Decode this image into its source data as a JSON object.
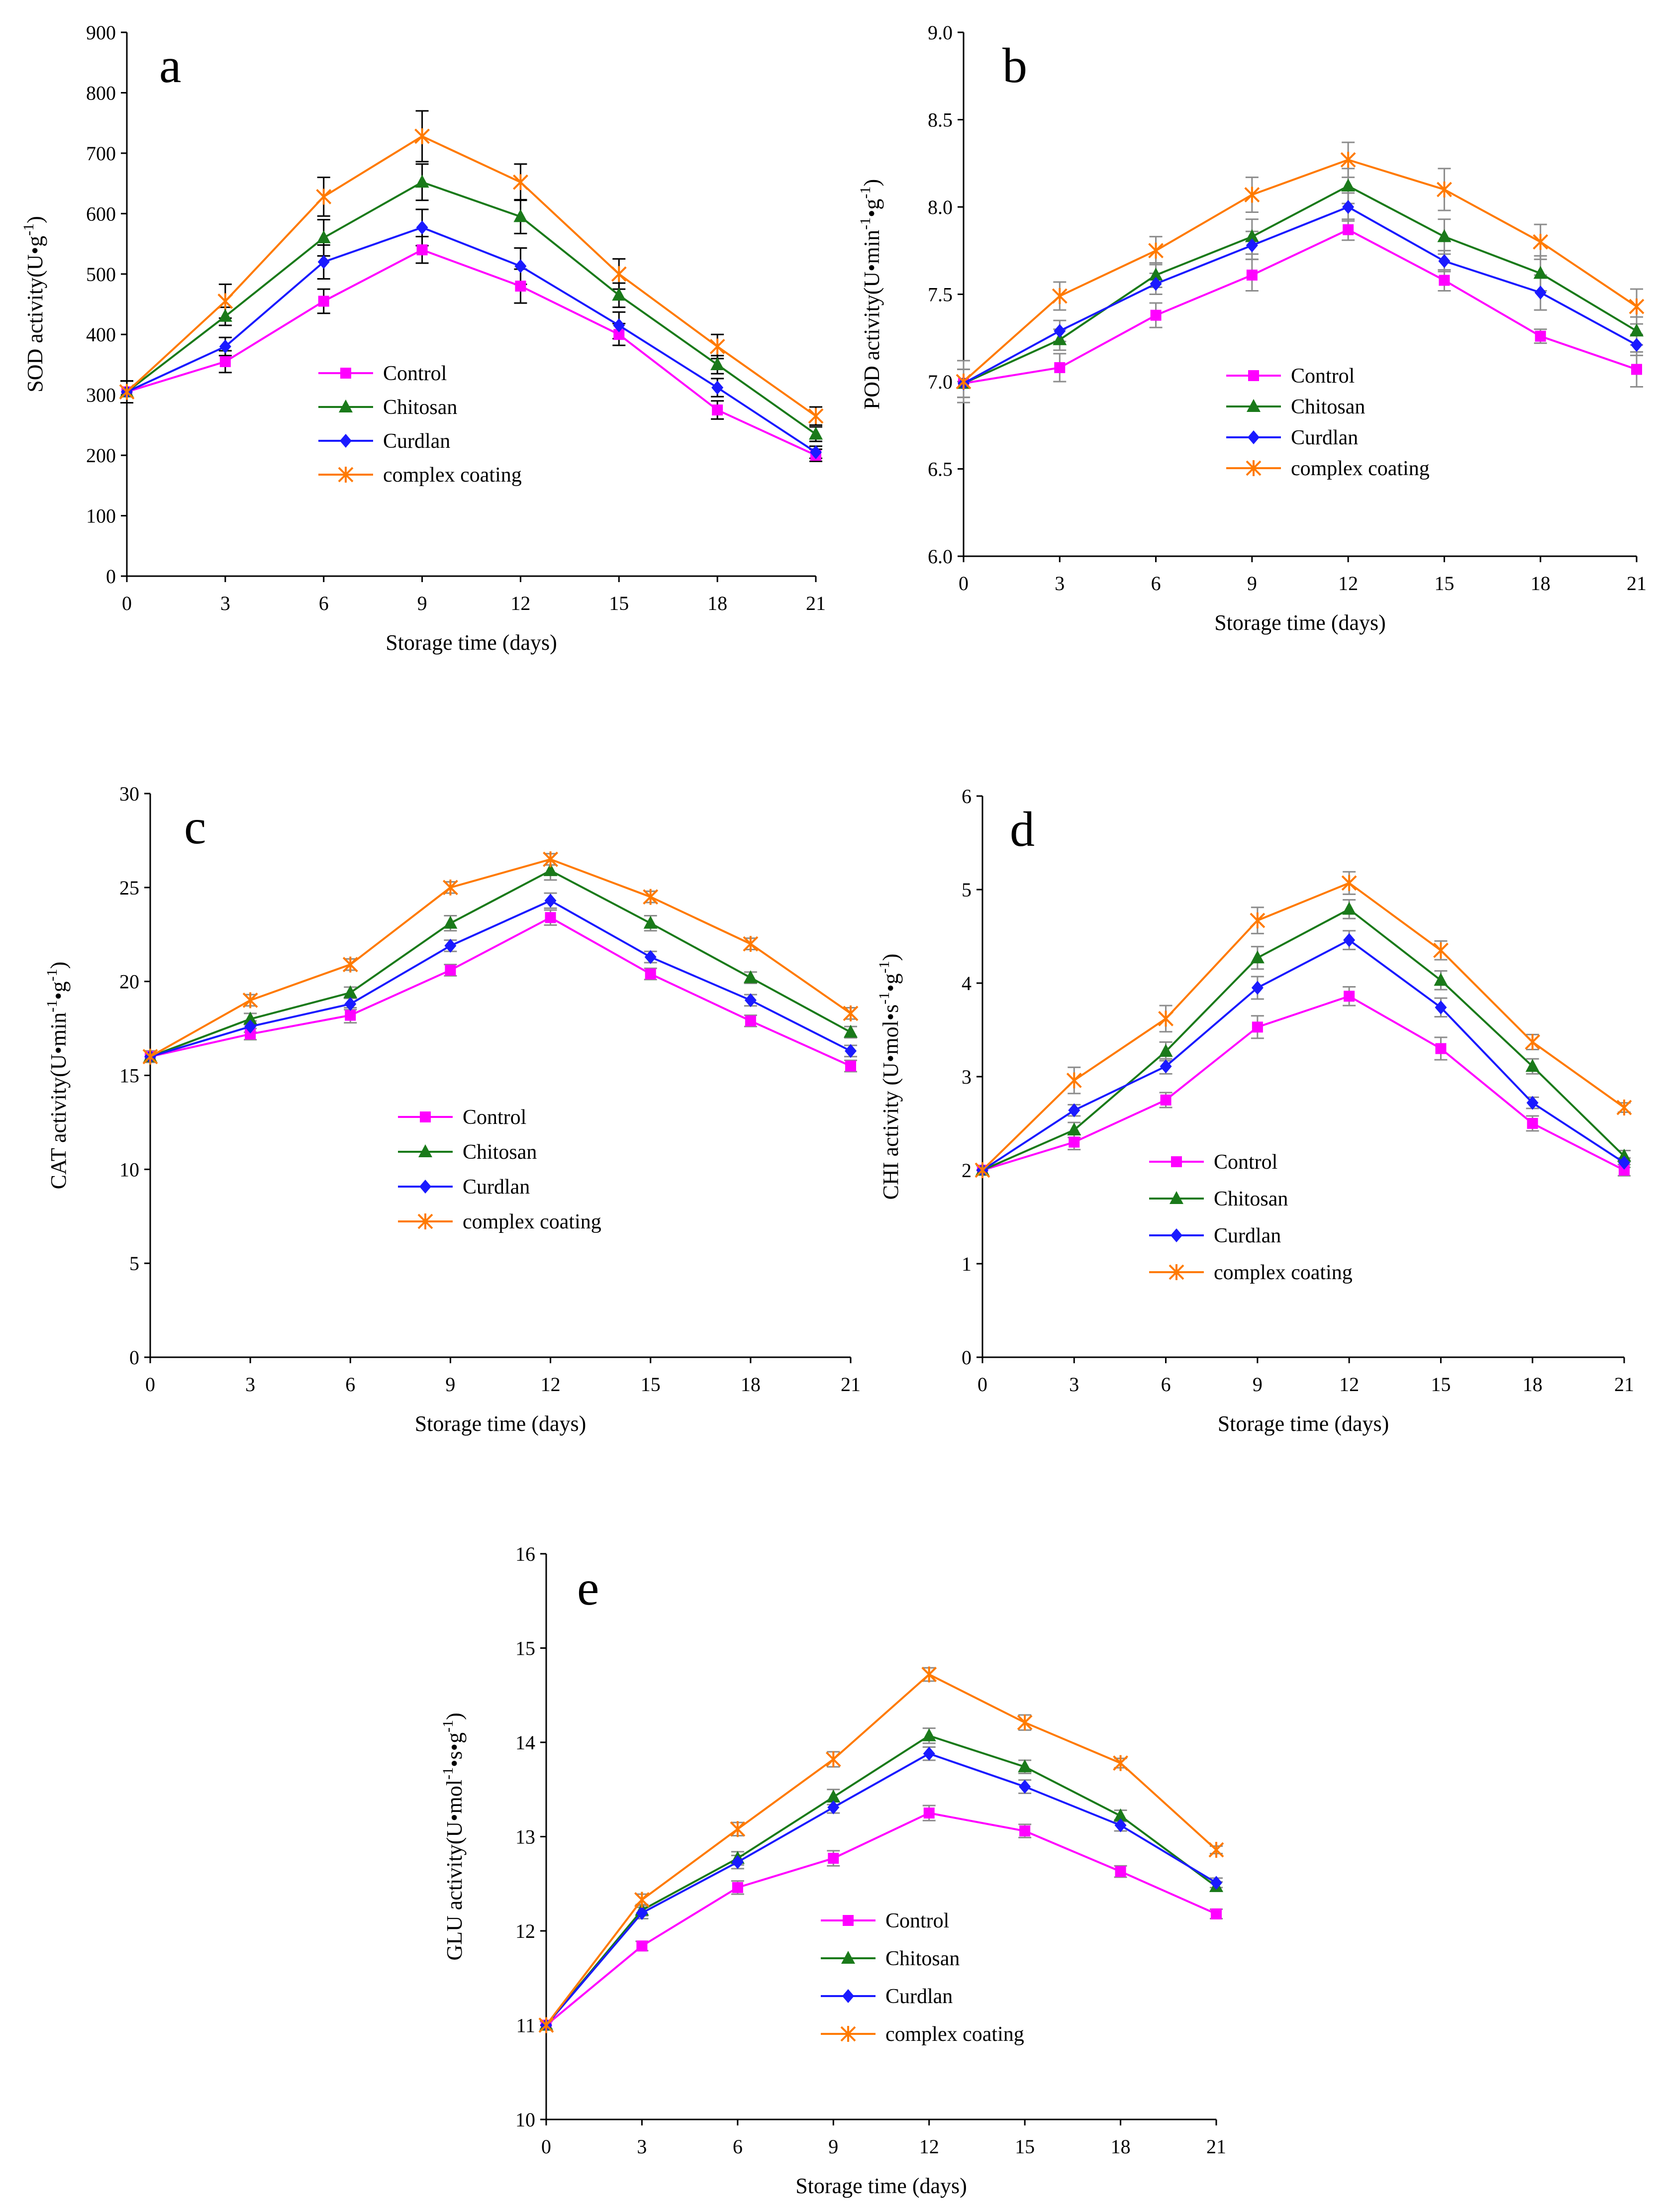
{
  "figure": {
    "colors": {
      "Control": "#ff00ff",
      "Chitosan": "#1a7a1a",
      "Curdlan": "#1a1aff",
      "complex coating": "#ff7a00",
      "error_bar_dark": "#000000",
      "error_bar_light": "#8c8c8c"
    },
    "markers": {
      "Control": "square",
      "Chitosan": "triangle",
      "Curdlan": "diamond",
      "complex coating": "star"
    }
  },
  "chart_data": [
    {
      "type": "line",
      "panel": "a",
      "title": "",
      "xlabel": "Storage time (days)",
      "ylabel": {
        "base": "SOD activity(U•g",
        "sup": "-1",
        "tail": ")"
      },
      "x": [
        0,
        3,
        6,
        9,
        12,
        15,
        18,
        21
      ],
      "xticks": [
        "0",
        "3",
        "6",
        "9",
        "12",
        "15",
        "18",
        "21"
      ],
      "ylim": [
        0,
        900
      ],
      "yticks": [
        "0",
        "100",
        "200",
        "300",
        "400",
        "500",
        "600",
        "700",
        "800",
        "900"
      ],
      "error_bar_style": "dark",
      "legend": [
        "Control",
        "Chitosan",
        "Curdlan",
        "complex coating"
      ],
      "series": [
        {
          "name": "Control",
          "values": [
            305,
            355,
            455,
            540,
            480,
            400,
            275,
            200
          ],
          "errors": [
            18,
            18,
            20,
            22,
            28,
            18,
            15,
            10
          ]
        },
        {
          "name": "Chitosan",
          "values": [
            305,
            430,
            560,
            652,
            595,
            465,
            350,
            235
          ],
          "errors": [
            18,
            15,
            30,
            30,
            28,
            20,
            15,
            12
          ]
        },
        {
          "name": "Curdlan",
          "values": [
            305,
            380,
            520,
            577,
            513,
            415,
            312,
            205
          ],
          "errors": [
            18,
            15,
            28,
            30,
            30,
            22,
            15,
            10
          ]
        },
        {
          "name": "complex coating",
          "values": [
            305,
            455,
            628,
            728,
            652,
            500,
            380,
            265
          ],
          "errors": [
            18,
            28,
            32,
            42,
            30,
            25,
            20,
            15
          ]
        }
      ]
    },
    {
      "type": "line",
      "panel": "b",
      "title": "",
      "xlabel": "Storage time (days)",
      "ylabel": {
        "base": "POD activity(U•min",
        "sup": "-1",
        "mid": "•g",
        "sup2": "-1",
        "tail": ")"
      },
      "x": [
        0,
        3,
        6,
        9,
        12,
        15,
        18,
        21
      ],
      "xticks": [
        "0",
        "3",
        "6",
        "9",
        "12",
        "15",
        "18",
        "21"
      ],
      "ylim": [
        6.0,
        9.0
      ],
      "yticks": [
        "6.0",
        "6.5",
        "7.0",
        "7.5",
        "8.0",
        "8.5",
        "9.0"
      ],
      "error_bar_style": "light",
      "legend": [
        "Control",
        "Chitosan",
        "Curdlan",
        "complex coating"
      ],
      "series": [
        {
          "name": "Control",
          "values": [
            6.99,
            7.08,
            7.38,
            7.61,
            7.87,
            7.58,
            7.26,
            7.07
          ],
          "errors": [
            0.08,
            0.08,
            0.07,
            0.09,
            0.06,
            0.06,
            0.04,
            0.1
          ]
        },
        {
          "name": "Chitosan",
          "values": [
            6.99,
            7.24,
            7.61,
            7.83,
            8.12,
            7.83,
            7.62,
            7.29
          ],
          "errors": [
            0.08,
            0.06,
            0.07,
            0.1,
            0.1,
            0.1,
            0.1,
            0.08
          ]
        },
        {
          "name": "Curdlan",
          "values": [
            6.99,
            7.29,
            7.56,
            7.78,
            8.0,
            7.69,
            7.51,
            7.21
          ],
          "errors": [
            0.08,
            0.06,
            0.06,
            0.08,
            0.08,
            0.06,
            0.1,
            0.06
          ]
        },
        {
          "name": "complex coating",
          "values": [
            7.0,
            7.49,
            7.75,
            8.07,
            8.27,
            8.1,
            7.8,
            7.43
          ],
          "errors": [
            0.12,
            0.08,
            0.08,
            0.1,
            0.1,
            0.12,
            0.1,
            0.1
          ]
        }
      ]
    },
    {
      "type": "line",
      "panel": "c",
      "title": "",
      "xlabel": "Storage time (days)",
      "ylabel": {
        "base": "CAT activity(U•min",
        "sup": "-1",
        "mid": "•g",
        "sup2": "-1",
        "tail": ")"
      },
      "x": [
        0,
        3,
        6,
        9,
        12,
        15,
        18,
        21
      ],
      "xticks": [
        "0",
        "3",
        "6",
        "9",
        "12",
        "15",
        "18",
        "21"
      ],
      "ylim": [
        0,
        30
      ],
      "yticks": [
        "0",
        "5",
        "10",
        "15",
        "20",
        "25",
        "30"
      ],
      "error_bar_style": "light",
      "legend": [
        "Control",
        "Chitosan",
        "Curdlan",
        "complex coating"
      ],
      "series": [
        {
          "name": "Control",
          "values": [
            16.0,
            17.2,
            18.2,
            20.6,
            23.4,
            20.4,
            17.9,
            15.5
          ],
          "errors": [
            0.3,
            0.3,
            0.4,
            0.3,
            0.4,
            0.3,
            0.3,
            0.3
          ]
        },
        {
          "name": "Chitosan",
          "values": [
            16.0,
            18.0,
            19.4,
            23.1,
            25.9,
            23.1,
            20.2,
            17.3
          ],
          "errors": [
            0.3,
            0.3,
            0.3,
            0.4,
            0.5,
            0.4,
            0.3,
            0.3
          ]
        },
        {
          "name": "Curdlan",
          "values": [
            16.0,
            17.6,
            18.8,
            21.9,
            24.3,
            21.3,
            19.0,
            16.3
          ],
          "errors": [
            0.3,
            0.3,
            0.3,
            0.3,
            0.4,
            0.3,
            0.3,
            0.3
          ]
        },
        {
          "name": "complex coating",
          "values": [
            16.0,
            19.0,
            20.9,
            25.0,
            26.5,
            24.5,
            22.0,
            18.3
          ],
          "errors": [
            0.3,
            0.3,
            0.3,
            0.3,
            0.3,
            0.3,
            0.3,
            0.3
          ]
        }
      ]
    },
    {
      "type": "line",
      "panel": "d",
      "title": "",
      "xlabel": "Storage time (days)",
      "ylabel": {
        "base": "CHI activity (U•mol•s",
        "sup": "-1",
        "mid": "•g",
        "sup2": "-1",
        "tail": ")"
      },
      "x": [
        0,
        3,
        6,
        9,
        12,
        15,
        18,
        21
      ],
      "xticks": [
        "0",
        "3",
        "6",
        "9",
        "12",
        "15",
        "18",
        "21"
      ],
      "ylim": [
        0,
        6
      ],
      "yticks": [
        "0",
        "1",
        "2",
        "3",
        "4",
        "5",
        "6"
      ],
      "error_bar_style": "light",
      "legend": [
        "Control",
        "Chitosan",
        "Curdlan",
        "complex coating"
      ],
      "series": [
        {
          "name": "Control",
          "values": [
            2.0,
            2.3,
            2.75,
            3.53,
            3.86,
            3.3,
            2.5,
            2.0
          ],
          "errors": [
            0.05,
            0.08,
            0.08,
            0.12,
            0.1,
            0.12,
            0.08,
            0.06
          ]
        },
        {
          "name": "Chitosan",
          "values": [
            2.0,
            2.43,
            3.27,
            4.27,
            4.79,
            4.03,
            3.11,
            2.15
          ],
          "errors": [
            0.05,
            0.08,
            0.1,
            0.12,
            0.1,
            0.1,
            0.08,
            0.06
          ]
        },
        {
          "name": "Curdlan",
          "values": [
            2.0,
            2.64,
            3.11,
            3.95,
            4.46,
            3.74,
            2.72,
            2.08
          ],
          "errors": [
            0.05,
            0.06,
            0.08,
            0.12,
            0.1,
            0.1,
            0.06,
            0.05
          ]
        },
        {
          "name": "complex coating",
          "values": [
            2.0,
            2.96,
            3.62,
            4.67,
            5.07,
            4.35,
            3.37,
            2.67
          ],
          "errors": [
            0.05,
            0.14,
            0.14,
            0.14,
            0.12,
            0.1,
            0.08,
            0.05
          ]
        }
      ]
    },
    {
      "type": "line",
      "panel": "e",
      "title": "",
      "xlabel": "Storage time (days)",
      "ylabel": {
        "base": "GLU activity(U•mol",
        "sup": "-1",
        "mid": "•s•g",
        "sup2": "-1",
        "tail": ")"
      },
      "x": [
        0,
        3,
        6,
        9,
        12,
        15,
        18,
        21
      ],
      "xticks": [
        "0",
        "3",
        "6",
        "9",
        "12",
        "15",
        "18",
        "21"
      ],
      "ylim": [
        10,
        16
      ],
      "yticks": [
        "10",
        "11",
        "12",
        "13",
        "14",
        "15",
        "16"
      ],
      "error_bar_style": "light",
      "legend": [
        "Control",
        "Chitosan",
        "Curdlan",
        "complex coating"
      ],
      "series": [
        {
          "name": "Control",
          "values": [
            11.0,
            11.84,
            12.46,
            12.77,
            13.25,
            13.06,
            12.63,
            12.18
          ],
          "errors": [
            0.04,
            0.05,
            0.07,
            0.08,
            0.08,
            0.07,
            0.06,
            0.05
          ]
        },
        {
          "name": "Chitosan",
          "values": [
            11.0,
            12.22,
            12.77,
            13.42,
            14.07,
            13.74,
            13.22,
            12.47
          ],
          "errors": [
            0.04,
            0.06,
            0.07,
            0.08,
            0.08,
            0.07,
            0.06,
            0.05
          ]
        },
        {
          "name": "Curdlan",
          "values": [
            11.0,
            12.19,
            12.73,
            13.31,
            13.88,
            13.53,
            13.12,
            12.51
          ],
          "errors": [
            0.04,
            0.06,
            0.07,
            0.06,
            0.07,
            0.07,
            0.06,
            0.05
          ]
        },
        {
          "name": "complex coating",
          "values": [
            11.0,
            12.33,
            13.08,
            13.82,
            14.72,
            14.21,
            13.78,
            12.86
          ],
          "errors": [
            0.04,
            0.06,
            0.07,
            0.08,
            0.07,
            0.08,
            0.05,
            0.04
          ]
        }
      ]
    }
  ]
}
